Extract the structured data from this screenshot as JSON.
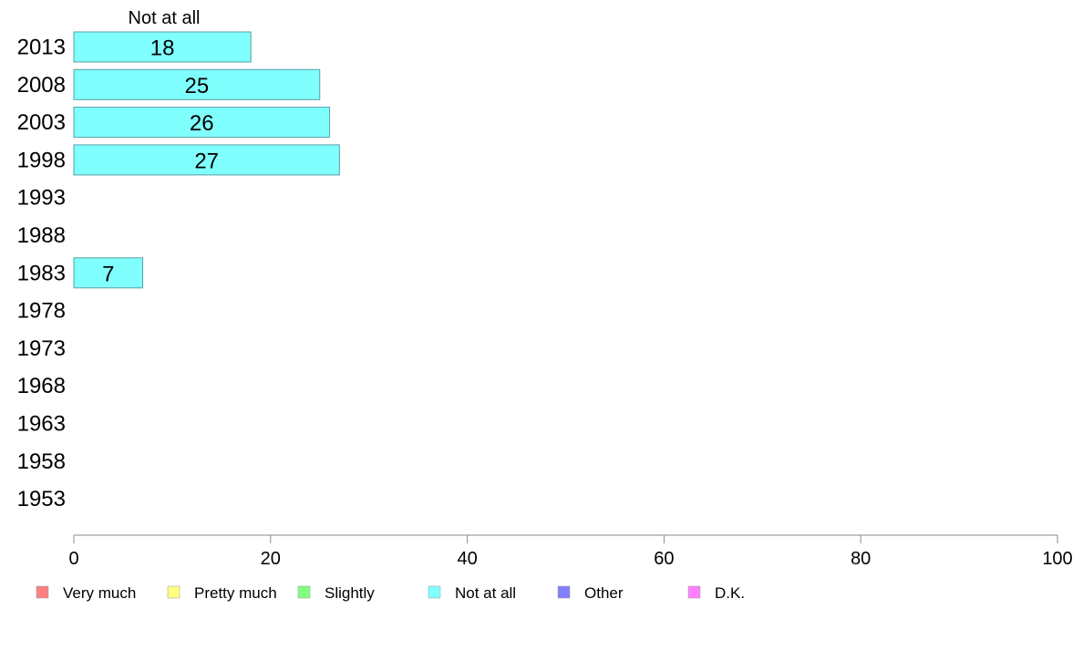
{
  "chart_data": {
    "type": "bar",
    "orientation": "horizontal",
    "title": "Not at all",
    "categories": [
      "2013",
      "2008",
      "2003",
      "1998",
      "1993",
      "1988",
      "1983",
      "1978",
      "1973",
      "1968",
      "1963",
      "1958",
      "1953"
    ],
    "series": [
      {
        "name": "Not at all",
        "color": "#80ffff",
        "values": [
          18,
          25,
          26,
          27,
          null,
          null,
          7,
          null,
          null,
          null,
          null,
          null,
          null
        ]
      }
    ],
    "xlim": [
      0,
      100
    ],
    "xticks": [
      0,
      20,
      40,
      60,
      80,
      100
    ],
    "grid": false,
    "legend": {
      "position": "bottom",
      "items": [
        {
          "label": "Very much",
          "color": "#ff8080"
        },
        {
          "label": "Pretty much",
          "color": "#ffff80"
        },
        {
          "label": "Slightly",
          "color": "#80ff80"
        },
        {
          "label": "Not at all",
          "color": "#80ffff"
        },
        {
          "label": "Other",
          "color": "#8080ff"
        },
        {
          "label": "D.K.",
          "color": "#ff80ff"
        }
      ]
    }
  }
}
